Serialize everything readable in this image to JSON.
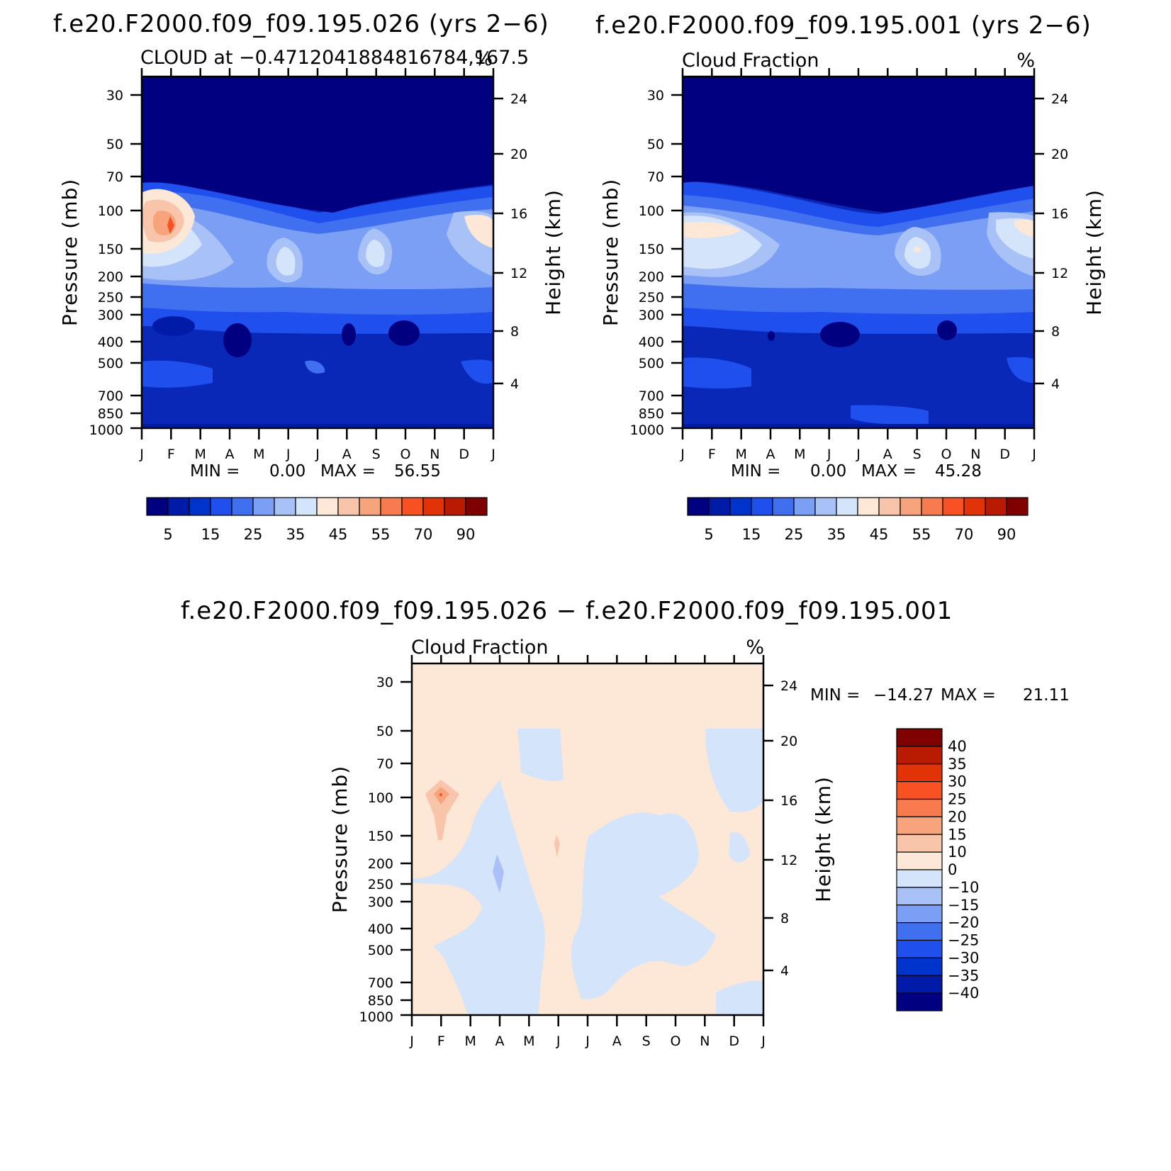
{
  "chart_data": [
    {
      "type": "contour",
      "id": "panel-a",
      "title": "f.e20.F2000.f09_f09.195.026 (yrs 2−6)",
      "subtitle_left": "CLOUD at −0.4712041884816784,167.5",
      "subtitle_right": "%",
      "xlabel": "",
      "ylabel": "Pressure (mb)",
      "ylabel_right": "Height (km)",
      "x_ticks": [
        "J",
        "F",
        "M",
        "A",
        "M",
        "J",
        "J",
        "A",
        "S",
        "O",
        "N",
        "D",
        "J"
      ],
      "y_ticks": [
        30,
        50,
        70,
        100,
        150,
        200,
        250,
        300,
        400,
        500,
        700,
        850,
        1000
      ],
      "y_ticks_right": [
        24,
        20,
        16,
        12,
        8,
        4
      ],
      "ylim": [
        1000,
        25
      ],
      "min_label": "MIN =",
      "min_value": "0.00",
      "max_label": "MAX =",
      "max_value": "56.55",
      "colorbar_levels": [
        0,
        5,
        10,
        15,
        20,
        25,
        30,
        35,
        40,
        45,
        50,
        55,
        60,
        70,
        80,
        90,
        100
      ],
      "colorbar_labels": [
        "5",
        "15",
        "25",
        "35",
        "45",
        "55",
        "70",
        "90"
      ],
      "contour_features": [
        {
          "region": "stratosphere 25-80 mb",
          "value": 0
        },
        {
          "region": "upper troposphere 100-250 mb",
          "value": 30
        },
        {
          "region": "max near Feb 120 mb",
          "value": 56.55
        },
        {
          "region": "mid/lower troposphere 300-1000 mb",
          "value": 10
        }
      ]
    },
    {
      "type": "contour",
      "id": "panel-b",
      "title": "f.e20.F2000.f09_f09.195.001 (yrs 2−6)",
      "subtitle_left": "Cloud Fraction",
      "subtitle_right": "%",
      "xlabel": "",
      "ylabel": "Pressure (mb)",
      "ylabel_right": "Height (km)",
      "x_ticks": [
        "J",
        "F",
        "M",
        "A",
        "M",
        "J",
        "J",
        "A",
        "S",
        "O",
        "N",
        "D",
        "J"
      ],
      "y_ticks": [
        30,
        50,
        70,
        100,
        150,
        200,
        250,
        300,
        400,
        500,
        700,
        850,
        1000
      ],
      "y_ticks_right": [
        24,
        20,
        16,
        12,
        8,
        4
      ],
      "ylim": [
        1000,
        25
      ],
      "min_label": "MIN =",
      "min_value": "0.00",
      "max_label": "MAX =",
      "max_value": "45.28",
      "colorbar_levels": [
        0,
        5,
        10,
        15,
        20,
        25,
        30,
        35,
        40,
        45,
        50,
        55,
        60,
        70,
        80,
        90,
        100
      ],
      "colorbar_labels": [
        "5",
        "15",
        "25",
        "35",
        "45",
        "55",
        "70",
        "90"
      ],
      "contour_features": [
        {
          "region": "stratosphere 25-80 mb",
          "value": 0
        },
        {
          "region": "upper troposphere 100-250 mb",
          "value": 30
        },
        {
          "region": "max near Sep 150 mb",
          "value": 45.28
        },
        {
          "region": "mid/lower troposphere 300-1000 mb",
          "value": 10
        }
      ]
    },
    {
      "type": "contour",
      "id": "panel-diff",
      "title": "f.e20.F2000.f09_f09.195.026 − f.e20.F2000.f09_f09.195.001",
      "subtitle_left": "Cloud Fraction",
      "subtitle_right": "%",
      "xlabel": "",
      "ylabel": "Pressure (mb)",
      "ylabel_right": "Height (km)",
      "x_ticks": [
        "J",
        "F",
        "M",
        "A",
        "M",
        "J",
        "J",
        "A",
        "S",
        "O",
        "N",
        "D",
        "J"
      ],
      "y_ticks": [
        30,
        50,
        70,
        100,
        150,
        200,
        250,
        300,
        400,
        500,
        700,
        850,
        1000
      ],
      "y_ticks_right": [
        24,
        20,
        16,
        12,
        8,
        4
      ],
      "ylim": [
        1000,
        25
      ],
      "min_label": "MIN =",
      "min_value": "−14.27",
      "max_label": "MAX =",
      "max_value": "21.11",
      "colorbar_levels": [
        -45,
        -40,
        -35,
        -30,
        -25,
        -20,
        -15,
        -10,
        0,
        10,
        15,
        20,
        25,
        30,
        35,
        40,
        45
      ],
      "colorbar_labels": [
        "40",
        "35",
        "30",
        "25",
        "20",
        "15",
        "10",
        "0",
        "−10",
        "−15",
        "−20",
        "−25",
        "−30",
        "−35",
        "−40"
      ],
      "contour_features": [
        {
          "region": "background",
          "value": 5
        },
        {
          "region": "Mar-May 120-1000 mb",
          "value": -5
        },
        {
          "region": "Jul-Nov 150-600 mb",
          "value": -5
        },
        {
          "region": "max near Feb 100 mb",
          "value": 21.11
        },
        {
          "region": "min near Apr 200 mb",
          "value": -14.27
        }
      ]
    }
  ],
  "colors": {
    "seq": [
      "#000080",
      "#001ba8",
      "#0033cc",
      "#1f50ee",
      "#4070f0",
      "#7a9ff5",
      "#a8c2f7",
      "#d4e5fb",
      "#fde7d6",
      "#f9c5aa",
      "#f7a47c",
      "#f77b4f",
      "#f75124",
      "#e23208",
      "#b81a02",
      "#800000"
    ],
    "div": [
      "#000080",
      "#001ba8",
      "#0033cc",
      "#1f50ee",
      "#4070f0",
      "#7a9ff5",
      "#a8c2f7",
      "#d4e5fb",
      "#fde7d6",
      "#f9c5aa",
      "#f7a47c",
      "#f77b4f",
      "#f75124",
      "#e23208",
      "#b81a02",
      "#800000"
    ]
  }
}
